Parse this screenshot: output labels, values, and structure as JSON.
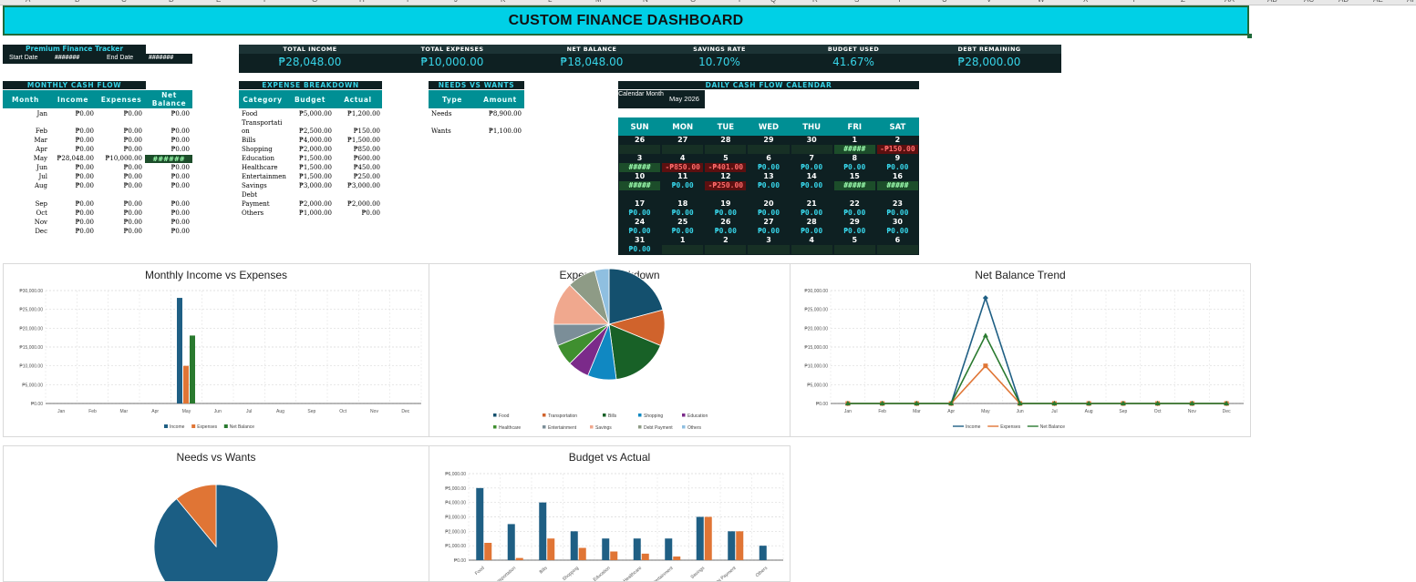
{
  "column_headers": [
    "A",
    "B",
    "C",
    "D",
    "E",
    "F",
    "G",
    "H",
    "I",
    "J",
    "K",
    "L",
    "M",
    "N",
    "O",
    "P",
    "Q",
    "R",
    "S",
    "T",
    "U",
    "V",
    "W",
    "X",
    "Y",
    "Z",
    "AA",
    "AB",
    "AC",
    "AD",
    "AE",
    "AF"
  ],
  "title": "CUSTOM FINANCE DASHBOARD",
  "tracker": {
    "title": "Premium Finance Tracker",
    "start_label": "Start Date",
    "start_value": "#######",
    "end_label": "End Date",
    "end_value": "#######"
  },
  "kpis": [
    {
      "label": "TOTAL INCOME",
      "value": "₱28,048.00"
    },
    {
      "label": "TOTAL EXPENSES",
      "value": "₱10,000.00"
    },
    {
      "label": "NET BALANCE",
      "value": "₱18,048.00"
    },
    {
      "label": "SAVINGS RATE",
      "value": "10.70%"
    },
    {
      "label": "BUDGET USED",
      "value": "41.67%"
    },
    {
      "label": "DEBT REMAINING",
      "value": "₱28,000.00"
    }
  ],
  "cash_flow": {
    "title": "MONTHLY CASH FLOW",
    "headers": [
      "Month",
      "Income",
      "Expenses",
      "Net Balance"
    ],
    "rows": [
      [
        "Jan",
        "₱0.00",
        "₱0.00",
        "₱0.00"
      ],
      [
        "Feb",
        "₱0.00",
        "₱0.00",
        "₱0.00"
      ],
      [
        "Mar",
        "₱0.00",
        "₱0.00",
        "₱0.00"
      ],
      [
        "Apr",
        "₱0.00",
        "₱0.00",
        "₱0.00"
      ],
      [
        "May",
        "₱28,048.00",
        "₱10,000.00",
        "######"
      ],
      [
        "Jun",
        "₱0.00",
        "₱0.00",
        "₱0.00"
      ],
      [
        "Jul",
        "₱0.00",
        "₱0.00",
        "₱0.00"
      ],
      [
        "Aug",
        "₱0.00",
        "₱0.00",
        "₱0.00"
      ],
      [
        "Sep",
        "₱0.00",
        "₱0.00",
        "₱0.00"
      ],
      [
        "Oct",
        "₱0.00",
        "₱0.00",
        "₱0.00"
      ],
      [
        "Nov",
        "₱0.00",
        "₱0.00",
        "₱0.00"
      ],
      [
        "Dec",
        "₱0.00",
        "₱0.00",
        "₱0.00"
      ]
    ]
  },
  "expense_breakdown": {
    "title": "EXPENSE BREAKDOWN",
    "headers": [
      "Category",
      "Budget",
      "Actual"
    ],
    "rows": [
      [
        "Food",
        "₱5,000.00",
        "₱1,200.00"
      ],
      [
        "Transportati",
        "",
        ""
      ],
      [
        "on",
        "₱2,500.00",
        "₱150.00"
      ],
      [
        "Bills",
        "₱4,000.00",
        "₱1,500.00"
      ],
      [
        "Shopping",
        "₱2,000.00",
        "₱850.00"
      ],
      [
        "Education",
        "₱1,500.00",
        "₱600.00"
      ],
      [
        "Healthcare",
        "₱1,500.00",
        "₱450.00"
      ],
      [
        "Entertainmen",
        "₱1,500.00",
        "₱250.00"
      ],
      [
        "Savings",
        "₱3,000.00",
        "₱3,000.00"
      ],
      [
        "Debt",
        "",
        ""
      ],
      [
        "Payment",
        "₱2,000.00",
        "₱2,000.00"
      ],
      [
        "Others",
        "₱1,000.00",
        "₱0.00"
      ]
    ]
  },
  "needs_wants": {
    "title": "NEEDS VS WANTS",
    "headers": [
      "Type",
      "Amount"
    ],
    "rows": [
      [
        "Needs",
        "₱8,900.00"
      ],
      [
        "Wants",
        "₱1,100.00"
      ]
    ]
  },
  "calendar": {
    "title": "DAILY CASH FLOW CALENDAR",
    "label": "Calendar Month",
    "month": "May 2026",
    "days": [
      "SUN",
      "MON",
      "TUE",
      "WED",
      "THU",
      "FRI",
      "SAT"
    ],
    "weeks": [
      {
        "nums": [
          "26",
          "27",
          "28",
          "29",
          "30",
          "1",
          "2"
        ],
        "vals": [
          "",
          "",
          "",
          "",
          "",
          "#####",
          "-₱150.00"
        ]
      },
      {
        "nums": [
          "3",
          "4",
          "5",
          "6",
          "7",
          "8",
          "9"
        ],
        "vals": [
          "#####",
          "-₱850.00",
          "-₱401.00",
          "₱0.00",
          "₱0.00",
          "₱0.00",
          "₱0.00"
        ]
      },
      {
        "nums": [
          "10",
          "11",
          "12",
          "13",
          "14",
          "15",
          "16"
        ],
        "vals": [
          "#####",
          "₱0.00",
          "-₱250.00",
          "₱0.00",
          "₱0.00",
          "#####",
          "#####"
        ]
      },
      {
        "nums": [
          "17",
          "18",
          "19",
          "20",
          "21",
          "22",
          "23"
        ],
        "vals": [
          "₱0.00",
          "₱0.00",
          "₱0.00",
          "₱0.00",
          "₱0.00",
          "₱0.00",
          "₱0.00"
        ]
      },
      {
        "nums": [
          "24",
          "25",
          "26",
          "27",
          "28",
          "29",
          "30"
        ],
        "vals": [
          "₱0.00",
          "₱0.00",
          "₱0.00",
          "₱0.00",
          "₱0.00",
          "₱0.00",
          "₱0.00"
        ]
      },
      {
        "nums": [
          "31",
          "1",
          "2",
          "3",
          "4",
          "5",
          "6"
        ],
        "vals": [
          "₱0.00",
          "",
          "",
          "",
          "",
          "",
          ""
        ]
      }
    ]
  },
  "colors": {
    "accent": "#00d0e6",
    "teal": "#008f94",
    "dark": "#0e2022",
    "income": "#1f5f84",
    "expenses": "#e07535",
    "net": "#2a7a2f",
    "negative": "#ff6b6b",
    "positive": "#37d4e8"
  },
  "chart_data": [
    {
      "type": "bar",
      "title": "Monthly Income vs Expenses",
      "categories": [
        "Jan",
        "Feb",
        "Mar",
        "Apr",
        "May",
        "Jun",
        "Jul",
        "Aug",
        "Sep",
        "Oct",
        "Nov",
        "Dec"
      ],
      "series": [
        {
          "name": "Income",
          "values": [
            0,
            0,
            0,
            0,
            28048,
            0,
            0,
            0,
            0,
            0,
            0,
            0
          ]
        },
        {
          "name": "Expenses",
          "values": [
            0,
            0,
            0,
            0,
            10000,
            0,
            0,
            0,
            0,
            0,
            0,
            0
          ]
        },
        {
          "name": "Net Balance",
          "values": [
            0,
            0,
            0,
            0,
            18048,
            0,
            0,
            0,
            0,
            0,
            0,
            0
          ]
        }
      ],
      "yticks": [
        "₱0.00",
        "₱5,000.00",
        "₱10,000.00",
        "₱15,000.00",
        "₱20,000.00",
        "₱25,000.00",
        "₱30,000.00"
      ],
      "ylim": [
        0,
        30000
      ],
      "legend": "bottom"
    },
    {
      "type": "pie",
      "title": "Expense Breakdown",
      "categories": [
        "Food",
        "Transportation",
        "Bills",
        "Shopping",
        "Education",
        "Healthcare",
        "Entertainment",
        "Savings",
        "Debt Payment",
        "Others"
      ],
      "values": [
        5000,
        2500,
        4000,
        2000,
        1500,
        1500,
        1500,
        3000,
        2000,
        1000
      ],
      "legend": "bottom"
    },
    {
      "type": "line",
      "title": "Net Balance Trend",
      "categories": [
        "Jan",
        "Feb",
        "Mar",
        "Apr",
        "May",
        "Jun",
        "Jul",
        "Aug",
        "Sep",
        "Oct",
        "Nov",
        "Dec"
      ],
      "series": [
        {
          "name": "Income",
          "values": [
            0,
            0,
            0,
            0,
            28048,
            0,
            0,
            0,
            0,
            0,
            0,
            0
          ]
        },
        {
          "name": "Expenses",
          "values": [
            0,
            0,
            0,
            0,
            10000,
            0,
            0,
            0,
            0,
            0,
            0,
            0
          ]
        },
        {
          "name": "Net Balance",
          "values": [
            0,
            0,
            0,
            0,
            18048,
            0,
            0,
            0,
            0,
            0,
            0,
            0
          ]
        }
      ],
      "yticks": [
        "₱0.00",
        "₱5,000.00",
        "₱10,000.00",
        "₱15,000.00",
        "₱20,000.00",
        "₱25,000.00",
        "₱30,000.00"
      ],
      "ylim": [
        0,
        30000
      ],
      "legend": "bottom"
    },
    {
      "type": "pie",
      "title": "Needs vs Wants",
      "categories": [
        "Needs",
        "Wants"
      ],
      "values": [
        8900,
        1100
      ]
    },
    {
      "type": "bar",
      "title": "Budget vs Actual",
      "categories": [
        "Food",
        "Transportation",
        "Bills",
        "Shopping",
        "Education",
        "Healthcare",
        "Entertainment",
        "Savings",
        "Debt Payment",
        "Others"
      ],
      "series": [
        {
          "values": [
            5000,
            2500,
            4000,
            2000,
            1500,
            1500,
            1500,
            3000,
            2000,
            1000
          ]
        },
        {
          "values": [
            1200,
            150,
            1500,
            850,
            600,
            450,
            250,
            3000,
            2000,
            0
          ]
        }
      ],
      "yticks": [
        "₱0.00",
        "₱1,000.00",
        "₱2,000.00",
        "₱3,000.00",
        "₱4,000.00",
        "₱5,000.00",
        "₱6,000.00"
      ],
      "ylim": [
        0,
        6000
      ]
    }
  ]
}
